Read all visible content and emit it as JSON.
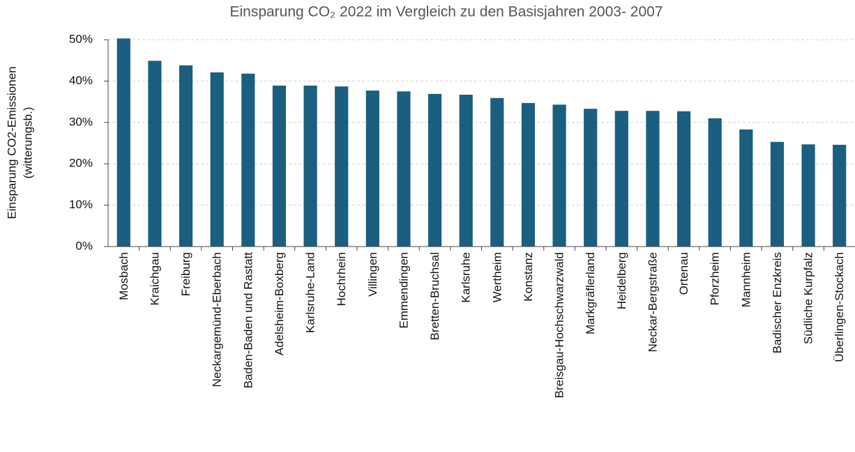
{
  "chart_data": {
    "type": "bar",
    "title": "Einsparung CO₂ 2022 im Vergleich zu den Basisjahren 2003- 2007",
    "ylabel": [
      "Einsparung CO2-Emissionen",
      "(witterungsb.)"
    ],
    "categories": [
      "Mosbach",
      "Kraichgau",
      "Freiburg",
      "Neckargemünd-Eberbach",
      "Baden-Baden und Rastatt",
      "Adelsheim-Boxberg",
      "Karlsruhe-Land",
      "Hochrhein",
      "Villingen",
      "Emmendingen",
      "Bretten-Bruchsal",
      "Karlsruhe",
      "Wertheim",
      "Konstanz",
      "Breisgau-Hochschwarzwald",
      "Markgräflerland",
      "Heidelberg",
      "Neckar-Bergstraße",
      "Ortenau",
      "Pforzheim",
      "Mannheim",
      "Badischer Enzkreis",
      "Südliche Kurpfalz",
      "Überlingen-Stockach"
    ],
    "values": [
      50.3,
      44.9,
      43.8,
      42.1,
      41.8,
      38.9,
      38.9,
      38.7,
      37.7,
      37.5,
      36.9,
      36.7,
      35.9,
      34.7,
      34.3,
      33.3,
      32.8,
      32.8,
      32.7,
      31.0,
      28.3,
      25.3,
      24.7,
      24.6
    ],
    "color": "#1a5f80",
    "ylim": [
      0,
      50
    ],
    "yticks": [
      {
        "value": 0,
        "label": "0%"
      },
      {
        "value": 10,
        "label": "10%"
      },
      {
        "value": 20,
        "label": "20%"
      },
      {
        "value": 30,
        "label": "30%"
      },
      {
        "value": 40,
        "label": "40%"
      },
      {
        "value": 50,
        "label": "50%"
      }
    ],
    "grid": true
  }
}
